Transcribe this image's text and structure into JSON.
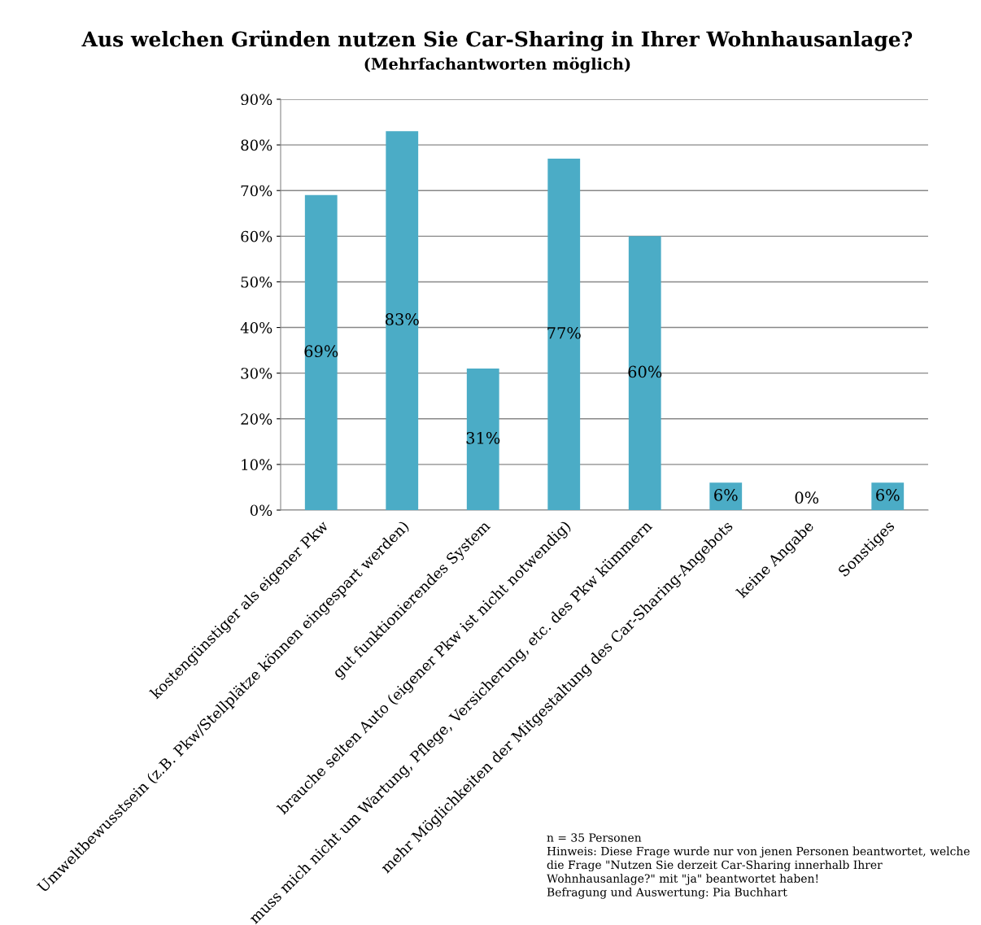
{
  "chart_data": {
    "type": "bar",
    "title": "Aus welchen Gründen nutzen Sie Car-Sharing in Ihrer Wohnhausanlage?",
    "subtitle": "(Mehrfachantworten möglich)",
    "categories": [
      "kostengünstiger als eigener Pkw",
      "Umweltbewusstsein (z.B. Pkw/Stellplätze können eingespart werden)",
      "gut funktionierendes System",
      "brauche selten Auto (eigener Pkw ist nicht notwendig)",
      "muss mich nicht um Wartung, Pflege, Versicherung, etc. des Pkw kümmern",
      "mehr Möglichkeiten der Mitgestaltung des Car-Sharing-Angebots",
      "keine Angabe",
      "Sonstiges"
    ],
    "values": [
      69,
      83,
      31,
      77,
      60,
      6,
      0,
      6
    ],
    "value_labels": [
      "69%",
      "83%",
      "31%",
      "77%",
      "60%",
      "6%",
      "0%",
      "6%"
    ],
    "color": "#4bacc6",
    "ylim": [
      0,
      90
    ],
    "yticks": [
      {
        "value": 0,
        "label": "0%"
      },
      {
        "value": 10,
        "label": "10%"
      },
      {
        "value": 20,
        "label": "20%"
      },
      {
        "value": 30,
        "label": "30%"
      },
      {
        "value": 40,
        "label": "40%"
      },
      {
        "value": 50,
        "label": "50%"
      },
      {
        "value": 60,
        "label": "60%"
      },
      {
        "value": 70,
        "label": "70%"
      },
      {
        "value": 80,
        "label": "80%"
      },
      {
        "value": 90,
        "label": "90%"
      }
    ],
    "grid": "y",
    "annotations": [
      "n = 35 Personen",
      "Hinweis: Diese Frage wurde nur von jenen Personen beantwortet, welche die Frage \"Nutzen Sie derzeit Car-Sharing innerhalb Ihrer Wohnhausanlage?\" mit \"ja\" beantwortet haben!",
      "Befragung und Auswertung: Pia Buchhart"
    ]
  }
}
